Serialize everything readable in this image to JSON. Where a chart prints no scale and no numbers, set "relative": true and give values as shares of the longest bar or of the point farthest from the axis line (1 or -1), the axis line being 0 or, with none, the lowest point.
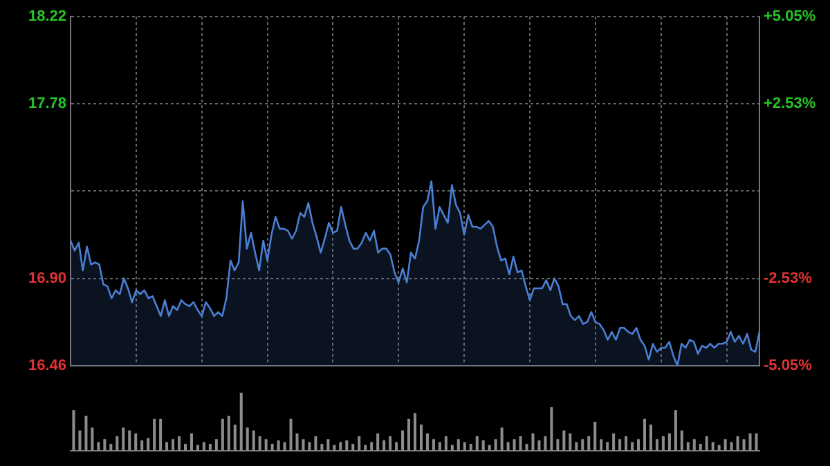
{
  "chart_data": [
    {
      "type": "area",
      "categories": [
        null,
        null,
        null,
        null,
        null,
        null,
        null,
        null,
        null,
        null,
        null,
        null,
        null,
        null,
        null,
        null,
        null,
        null,
        null,
        null,
        null,
        null,
        null,
        null,
        null,
        null,
        null,
        null,
        null,
        null,
        null,
        null,
        null,
        null,
        null,
        null,
        null,
        null,
        null,
        null,
        null,
        null,
        null,
        null,
        null,
        null,
        null,
        null,
        null,
        null,
        null,
        null,
        null,
        null,
        null,
        null,
        null,
        null,
        null,
        null,
        null,
        null,
        null,
        null,
        null,
        null,
        null,
        null,
        null,
        null,
        null,
        null,
        null,
        null,
        null,
        null,
        null,
        null,
        null,
        null,
        null,
        null,
        null,
        null,
        null,
        null,
        null,
        null,
        null,
        null,
        null,
        null,
        null,
        null,
        null,
        null,
        null,
        null,
        null,
        null,
        null,
        null,
        null,
        null,
        null,
        null,
        null,
        null,
        null,
        null,
        null,
        null,
        null,
        null,
        null,
        null,
        null,
        null,
        null,
        null,
        null,
        null,
        null,
        null,
        null,
        null,
        null,
        null,
        null,
        null,
        null,
        null,
        null,
        null,
        null,
        null,
        null,
        null,
        null,
        null,
        null,
        null,
        null,
        null,
        null,
        null,
        null,
        null,
        null,
        null,
        null,
        null,
        null,
        null,
        null,
        null,
        null,
        null,
        null,
        null,
        null,
        null,
        null,
        null,
        null,
        null,
        null,
        null,
        null
      ],
      "ylim": [
        16.46,
        18.22
      ],
      "yticks": [
        16.46,
        {
          "value": 16.9,
          "label": "16.90"
        },
        {
          "value": 17.34,
          "label": null
        },
        17.78,
        18.22
      ],
      "y2lim": [
        -5.05,
        5.05
      ],
      "y2ticks": [
        {
          "value": -5.05,
          "label": "-5.05%"
        },
        {
          "value": -2.53,
          "label": "-2.53%"
        },
        {
          "value": 2.53,
          "label": "+2.53%"
        },
        {
          "value": 5.05,
          "label": "+5.05%"
        }
      ],
      "grid": true,
      "legend": false,
      "marker": "none",
      "line_style": "solid",
      "series": [
        {
          "color": "#4a7fd4",
          "values": [
            17.09,
            17.04,
            17.08,
            16.94,
            17.06,
            16.97,
            16.98,
            16.97,
            16.87,
            16.86,
            16.8,
            16.84,
            16.82,
            16.9,
            16.85,
            16.78,
            16.84,
            16.82,
            16.84,
            16.8,
            16.81,
            16.76,
            16.71,
            16.79,
            16.71,
            16.76,
            16.74,
            16.79,
            16.77,
            16.76,
            16.78,
            16.74,
            16.71,
            16.78,
            16.75,
            16.71,
            16.73,
            16.71,
            16.8,
            16.99,
            16.94,
            16.98,
            17.29,
            17.05,
            17.13,
            17.03,
            16.94,
            17.09,
            16.99,
            17.12,
            17.21,
            17.15,
            17.15,
            17.14,
            17.1,
            17.14,
            17.23,
            17.21,
            17.28,
            17.18,
            17.11,
            17.03,
            17.1,
            17.18,
            17.13,
            17.14,
            17.26,
            17.17,
            17.09,
            17.05,
            17.05,
            17.08,
            17.13,
            17.09,
            17.14,
            17.03,
            17.05,
            17.05,
            17.02,
            16.93,
            16.88,
            16.95,
            16.88,
            17.03,
            17.0,
            17.09,
            17.26,
            17.29,
            17.39,
            17.15,
            17.26,
            17.22,
            17.18,
            17.37,
            17.27,
            17.23,
            17.12,
            17.22,
            17.16,
            17.16,
            17.15,
            17.17,
            17.19,
            17.16,
            17.06,
            16.99,
            17.0,
            16.92,
            17.01,
            16.93,
            16.94,
            16.86,
            16.79,
            16.85,
            16.85,
            16.85,
            16.89,
            16.84,
            16.9,
            16.86,
            16.77,
            16.77,
            16.71,
            16.69,
            16.71,
            16.67,
            16.68,
            16.73,
            16.68,
            16.67,
            16.64,
            16.59,
            16.63,
            16.59,
            16.65,
            16.65,
            16.63,
            16.62,
            16.65,
            16.59,
            16.56,
            16.49,
            16.57,
            16.53,
            16.55,
            16.55,
            16.58,
            16.51,
            16.46,
            16.57,
            16.55,
            16.59,
            16.58,
            16.52,
            16.56,
            16.55,
            16.57,
            16.55,
            16.57,
            16.57,
            16.58,
            16.63,
            16.58,
            16.61,
            16.57,
            16.62,
            16.54,
            16.53,
            16.63
          ]
        }
      ]
    },
    {
      "type": "bar",
      "relative": true,
      "legend": false,
      "color": "#8c8c8c",
      "categories": [
        null,
        null,
        null,
        null,
        null,
        null,
        null,
        null,
        null,
        null,
        null,
        null,
        null,
        null,
        null,
        null,
        null,
        null,
        null,
        null,
        null,
        null,
        null,
        null,
        null,
        null,
        null,
        null,
        null,
        null,
        null,
        null,
        null,
        null,
        null,
        null,
        null,
        null,
        null,
        null,
        null,
        null,
        null,
        null,
        null,
        null,
        null,
        null,
        null,
        null,
        null,
        null,
        null,
        null,
        null,
        null,
        null,
        null,
        null,
        null,
        null,
        null,
        null,
        null,
        null,
        null,
        null,
        null,
        null,
        null,
        null,
        null,
        null,
        null,
        null,
        null,
        null,
        null,
        null,
        null,
        null,
        null,
        null,
        null,
        null,
        null,
        null,
        null,
        null,
        null,
        null,
        null,
        null,
        null,
        null,
        null,
        null,
        null,
        null,
        null,
        null,
        null,
        null,
        null,
        null,
        null,
        null,
        null,
        null,
        null,
        null
      ],
      "values": [
        0.7,
        0.35,
        0.6,
        0.4,
        0.15,
        0.2,
        0.12,
        0.25,
        0.4,
        0.35,
        0.3,
        0.18,
        0.22,
        0.55,
        0.55,
        0.15,
        0.2,
        0.25,
        0.12,
        0.3,
        0.1,
        0.15,
        0.12,
        0.2,
        0.55,
        0.6,
        0.45,
        1,
        0.4,
        0.35,
        0.25,
        0.2,
        0.12,
        0.18,
        0.15,
        0.55,
        0.3,
        0.2,
        0.15,
        0.25,
        0.12,
        0.2,
        0.1,
        0.15,
        0.18,
        0.12,
        0.25,
        0.1,
        0.15,
        0.3,
        0.18,
        0.25,
        0.15,
        0.35,
        0.55,
        0.65,
        0.45,
        0.3,
        0.2,
        0.15,
        0.25,
        0.1,
        0.2,
        0.15,
        0.12,
        0.25,
        0.18,
        0.1,
        0.2,
        0.4,
        0.15,
        0.2,
        0.25,
        0.12,
        0.3,
        0.18,
        0.25,
        0.75,
        0.2,
        0.35,
        0.3,
        0.15,
        0.2,
        0.25,
        0.5,
        0.2,
        0.15,
        0.3,
        0.2,
        0.25,
        0.15,
        0.2,
        0.55,
        0.45,
        0.2,
        0.25,
        0.3,
        0.7,
        0.35,
        0.15,
        0.2,
        0.12,
        0.25,
        0.15,
        0.1,
        0.2,
        0.15,
        0.25,
        0.2,
        0.3,
        0.3
      ]
    }
  ]
}
